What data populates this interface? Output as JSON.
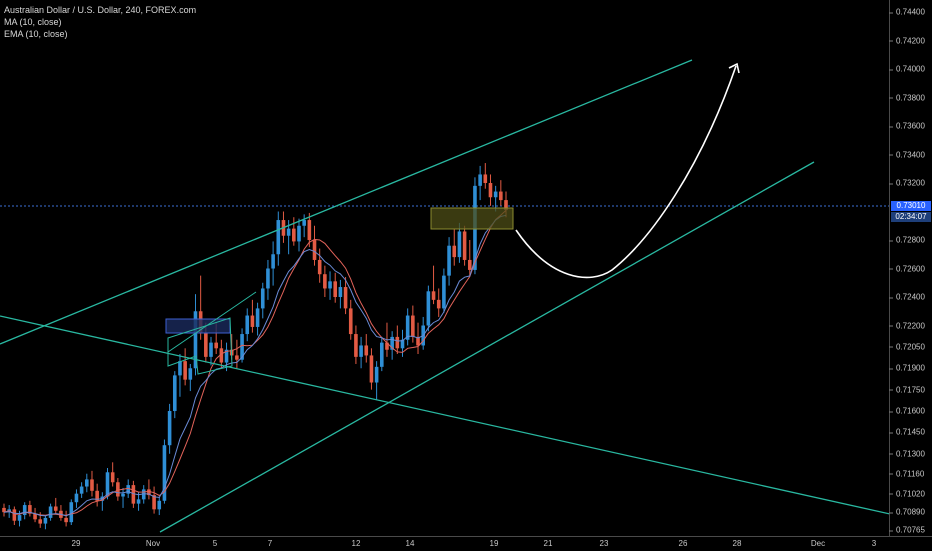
{
  "legend": {
    "title": "Australian Dollar / U.S. Dollar, 240, FOREX.com",
    "ma": "MA (10, close)",
    "ema": "EMA (10, close)"
  },
  "colors": {
    "background": "#000000",
    "candle_up": "#2f8fd6",
    "candle_down": "#e35b44",
    "trendline": "#29b8a1",
    "ma_line": "#e2635a",
    "ema_line": "#6a8bd6",
    "price_line": "#3d6fd6",
    "arrow": "#ffffff",
    "zone_fill": "#4d4d17"
  },
  "current_price": "0.73010",
  "countdown": "02:34:07",
  "chart_data": {
    "type": "candlestick",
    "symbol": "Australian Dollar / U.S. Dollar",
    "timeframe": "240",
    "y_ticks": [
      "0.74400",
      "0.74200",
      "0.74000",
      "0.73800",
      "0.73600",
      "0.73400",
      "0.73200",
      "0.72800",
      "0.72600",
      "0.72400",
      "0.72200",
      "0.72050",
      "0.71900",
      "0.71750",
      "0.71600",
      "0.71450",
      "0.71300",
      "0.71160",
      "0.71020",
      "0.70890",
      "0.70765"
    ],
    "x_ticks": [
      "29",
      "Nov",
      "5",
      "7",
      "12",
      "14",
      "19",
      "21",
      "23",
      "26",
      "28",
      "Dec",
      "3"
    ],
    "ohlc": [
      [
        0.7092,
        0.7095,
        0.7086,
        0.7089
      ],
      [
        0.7089,
        0.7094,
        0.7085,
        0.7091
      ],
      [
        0.7091,
        0.7093,
        0.708,
        0.7083
      ],
      [
        0.7083,
        0.709,
        0.7079,
        0.7087
      ],
      [
        0.7087,
        0.7096,
        0.7084,
        0.7094
      ],
      [
        0.7094,
        0.7097,
        0.7086,
        0.7088
      ],
      [
        0.7088,
        0.7092,
        0.7082,
        0.7084
      ],
      [
        0.7084,
        0.7089,
        0.7078,
        0.7081
      ],
      [
        0.7081,
        0.7087,
        0.7077,
        0.7085
      ],
      [
        0.7085,
        0.7095,
        0.7083,
        0.7093
      ],
      [
        0.7093,
        0.7099,
        0.7088,
        0.709
      ],
      [
        0.709,
        0.7094,
        0.7083,
        0.7085
      ],
      [
        0.7085,
        0.709,
        0.7079,
        0.7082
      ],
      [
        0.7082,
        0.7098,
        0.708,
        0.7096
      ],
      [
        0.7096,
        0.7105,
        0.7092,
        0.7102
      ],
      [
        0.7102,
        0.711,
        0.7099,
        0.7107
      ],
      [
        0.7107,
        0.7116,
        0.7103,
        0.7112
      ],
      [
        0.7112,
        0.7118,
        0.71,
        0.7104
      ],
      [
        0.7104,
        0.7109,
        0.7093,
        0.7097
      ],
      [
        0.7097,
        0.7103,
        0.709,
        0.71
      ],
      [
        0.71,
        0.712,
        0.7098,
        0.7117
      ],
      [
        0.7117,
        0.7124,
        0.7107,
        0.711
      ],
      [
        0.711,
        0.7113,
        0.7097,
        0.71
      ],
      [
        0.71,
        0.7106,
        0.7092,
        0.7102
      ],
      [
        0.7102,
        0.7112,
        0.7099,
        0.7108
      ],
      [
        0.7108,
        0.7111,
        0.7092,
        0.7095
      ],
      [
        0.7095,
        0.7103,
        0.709,
        0.7098
      ],
      [
        0.7098,
        0.7108,
        0.7095,
        0.7105
      ],
      [
        0.7105,
        0.7112,
        0.7098,
        0.7101
      ],
      [
        0.7101,
        0.7107,
        0.7088,
        0.7091
      ],
      [
        0.7091,
        0.71,
        0.7087,
        0.7097
      ],
      [
        0.7097,
        0.714,
        0.7095,
        0.7136
      ],
      [
        0.7136,
        0.7165,
        0.713,
        0.716
      ],
      [
        0.716,
        0.7188,
        0.7155,
        0.7185
      ],
      [
        0.7185,
        0.72,
        0.717,
        0.7195
      ],
      [
        0.7195,
        0.7204,
        0.7178,
        0.7182
      ],
      [
        0.7182,
        0.7193,
        0.7174,
        0.719
      ],
      [
        0.719,
        0.7242,
        0.7185,
        0.723
      ],
      [
        0.723,
        0.7255,
        0.721,
        0.7215
      ],
      [
        0.7215,
        0.7222,
        0.7194,
        0.7198
      ],
      [
        0.7198,
        0.7212,
        0.7192,
        0.7208
      ],
      [
        0.7208,
        0.7222,
        0.72,
        0.7204
      ],
      [
        0.7204,
        0.721,
        0.719,
        0.7194
      ],
      [
        0.7194,
        0.7208,
        0.7188,
        0.7203
      ],
      [
        0.7203,
        0.7214,
        0.7196,
        0.7199
      ],
      [
        0.7199,
        0.721,
        0.719,
        0.7196
      ],
      [
        0.7196,
        0.7218,
        0.7194,
        0.7214
      ],
      [
        0.7214,
        0.7232,
        0.7209,
        0.7227
      ],
      [
        0.7227,
        0.7238,
        0.7215,
        0.7219
      ],
      [
        0.7219,
        0.7236,
        0.7213,
        0.7232
      ],
      [
        0.7232,
        0.725,
        0.7225,
        0.7246
      ],
      [
        0.7246,
        0.7266,
        0.7238,
        0.726
      ],
      [
        0.726,
        0.7279,
        0.7248,
        0.727
      ],
      [
        0.727,
        0.73,
        0.7262,
        0.7294
      ],
      [
        0.7294,
        0.73,
        0.7278,
        0.7283
      ],
      [
        0.7283,
        0.7294,
        0.727,
        0.7288
      ],
      [
        0.7288,
        0.7296,
        0.7276,
        0.7279
      ],
      [
        0.7279,
        0.7295,
        0.7272,
        0.729
      ],
      [
        0.729,
        0.7298,
        0.7282,
        0.7294
      ],
      [
        0.7294,
        0.7299,
        0.7275,
        0.728
      ],
      [
        0.728,
        0.729,
        0.7262,
        0.7266
      ],
      [
        0.7266,
        0.7274,
        0.725,
        0.7256
      ],
      [
        0.7256,
        0.7262,
        0.724,
        0.7246
      ],
      [
        0.7246,
        0.7258,
        0.7238,
        0.7251
      ],
      [
        0.7251,
        0.7257,
        0.7236,
        0.724
      ],
      [
        0.724,
        0.7252,
        0.7232,
        0.7247
      ],
      [
        0.7247,
        0.7254,
        0.7228,
        0.7232
      ],
      [
        0.7232,
        0.7238,
        0.721,
        0.7214
      ],
      [
        0.7214,
        0.722,
        0.7193,
        0.7198
      ],
      [
        0.7198,
        0.7212,
        0.719,
        0.7206
      ],
      [
        0.7206,
        0.7214,
        0.7194,
        0.7199
      ],
      [
        0.7199,
        0.7204,
        0.7175,
        0.718
      ],
      [
        0.718,
        0.7195,
        0.7168,
        0.7191
      ],
      [
        0.7191,
        0.7212,
        0.7188,
        0.7208
      ],
      [
        0.7208,
        0.7222,
        0.7198,
        0.7203
      ],
      [
        0.7203,
        0.7216,
        0.7196,
        0.7212
      ],
      [
        0.7212,
        0.722,
        0.72,
        0.7204
      ],
      [
        0.7204,
        0.7217,
        0.7198,
        0.721
      ],
      [
        0.721,
        0.7232,
        0.7206,
        0.7227
      ],
      [
        0.7227,
        0.7234,
        0.7208,
        0.7212
      ],
      [
        0.7212,
        0.7222,
        0.72,
        0.7206
      ],
      [
        0.7206,
        0.7226,
        0.7203,
        0.722
      ],
      [
        0.722,
        0.7248,
        0.7216,
        0.7244
      ],
      [
        0.7244,
        0.7262,
        0.7235,
        0.7238
      ],
      [
        0.7238,
        0.7246,
        0.7226,
        0.7232
      ],
      [
        0.7232,
        0.726,
        0.7229,
        0.7255
      ],
      [
        0.7255,
        0.7282,
        0.7248,
        0.7276
      ],
      [
        0.7276,
        0.7288,
        0.7262,
        0.7268
      ],
      [
        0.7268,
        0.7292,
        0.7264,
        0.7286
      ],
      [
        0.7286,
        0.729,
        0.7262,
        0.7266
      ],
      [
        0.7266,
        0.728,
        0.7255,
        0.7259
      ],
      [
        0.7259,
        0.7324,
        0.7256,
        0.7318
      ],
      [
        0.7318,
        0.7332,
        0.7308,
        0.7326
      ],
      [
        0.7326,
        0.7334,
        0.7316,
        0.732
      ],
      [
        0.732,
        0.7326,
        0.7304,
        0.731
      ],
      [
        0.731,
        0.7318,
        0.73,
        0.7314
      ],
      [
        0.7314,
        0.7322,
        0.7304,
        0.7308
      ],
      [
        0.7308,
        0.7314,
        0.7296,
        0.7301
      ]
    ],
    "ma_period": 10,
    "ema_period": 10,
    "annotations": [
      "ascending channel upper line",
      "ascending channel lower line",
      "descending trendline",
      "consolidation boxes",
      "demand zone box",
      "projected curve arrow"
    ]
  },
  "time_axis_labels": [
    "29",
    "Nov",
    "5",
    "7",
    "12",
    "14",
    "19",
    "21",
    "23",
    "26",
    "28",
    "Dec",
    "3"
  ]
}
